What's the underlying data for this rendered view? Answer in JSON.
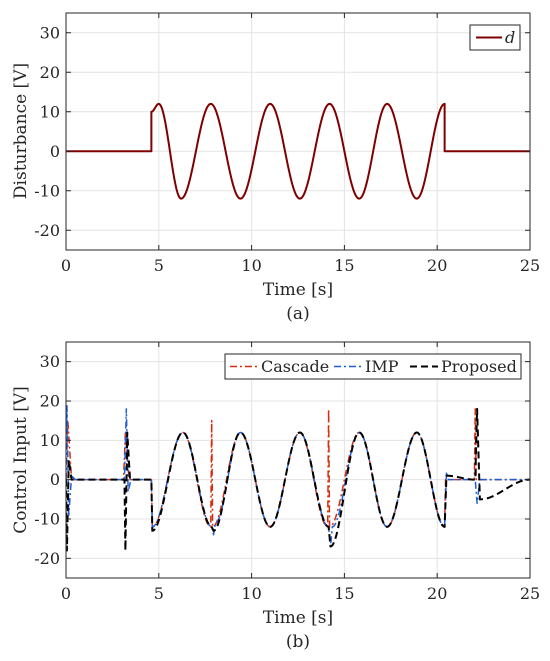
{
  "chart_data": [
    {
      "type": "line",
      "caption": "(a)",
      "xlabel": "Time [s]",
      "ylabel": "Disturbance [V]",
      "xlim": [
        0,
        25
      ],
      "ylim": [
        -25,
        35
      ],
      "xticks": [
        0,
        5,
        10,
        15,
        20,
        25
      ],
      "yticks": [
        -20,
        -10,
        0,
        10,
        20,
        30
      ],
      "grid": true,
      "legend_position": "top-right",
      "series": [
        {
          "name": "d",
          "color": "#7f0000",
          "style": "solid",
          "x": [
            0,
            4.6,
            4.6,
            5.0,
            6.2,
            7.8,
            9.4,
            11.0,
            12.6,
            14.2,
            15.8,
            17.3,
            18.9,
            20.4,
            20.4,
            25
          ],
          "y": [
            0,
            0,
            10,
            12,
            -12,
            12,
            -12,
            12,
            -12,
            12,
            -12,
            12,
            -12,
            12,
            0,
            0
          ]
        }
      ]
    },
    {
      "type": "line",
      "caption": "(b)",
      "xlabel": "Time [s]",
      "ylabel": "Control Input [V]",
      "xlim": [
        0,
        25
      ],
      "ylim": [
        -25,
        35
      ],
      "xticks": [
        0,
        5,
        10,
        15,
        20,
        25
      ],
      "yticks": [
        -20,
        -10,
        0,
        10,
        20,
        30
      ],
      "grid": true,
      "legend_position": "top-right",
      "series": [
        {
          "name": "Cascade",
          "color": "#d62d0f",
          "style": "dashdot",
          "x": [
            0,
            0.1,
            0.3,
            3.1,
            3.2,
            3.4,
            4.6,
            4.65,
            6.3,
            7.8,
            7.85,
            7.9,
            9.4,
            11.0,
            12.6,
            14.1,
            14.15,
            14.2,
            15.8,
            17.3,
            18.9,
            20.4,
            20.45,
            22.0,
            22.05,
            22.1,
            25
          ],
          "y": [
            0,
            15,
            0,
            0,
            12,
            0,
            0,
            -12,
            12,
            -12,
            15,
            -12,
            12,
            -12,
            12,
            -12,
            18,
            -12,
            12,
            -12,
            12,
            -12,
            0,
            0,
            18,
            0,
            0
          ]
        },
        {
          "name": "IMP",
          "color": "#1f5fd6",
          "style": "dashdot",
          "x": [
            0,
            0.05,
            0.15,
            0.3,
            0.5,
            3.15,
            3.25,
            3.35,
            3.5,
            4.6,
            4.65,
            6.3,
            7.85,
            7.95,
            8.05,
            9.4,
            11.0,
            12.6,
            14.15,
            14.25,
            14.35,
            15.8,
            17.3,
            18.9,
            20.4,
            20.5,
            20.6,
            22.05,
            22.15,
            22.3,
            25
          ],
          "y": [
            0,
            19,
            -9,
            1,
            0,
            0,
            18,
            -3,
            0,
            0,
            -12,
            12,
            -12,
            -14,
            -11,
            12,
            -12,
            12,
            -12,
            -17,
            -12,
            12,
            -12,
            12,
            -12,
            2,
            0,
            0,
            -6,
            0,
            0
          ]
        },
        {
          "name": "Proposed",
          "color": "#000000",
          "style": "dashed",
          "x": [
            0,
            0.05,
            0.15,
            0.3,
            3.15,
            3.2,
            3.3,
            3.45,
            4.6,
            4.65,
            6.3,
            7.85,
            7.95,
            9.4,
            11.0,
            12.6,
            14.15,
            14.25,
            15.8,
            17.3,
            18.9,
            20.4,
            20.5,
            22.05,
            22.15,
            22.3,
            25
          ],
          "y": [
            0,
            -18,
            5,
            0,
            0,
            -18,
            12,
            0,
            0,
            -13,
            12,
            -12,
            -13,
            12,
            -12,
            12,
            -12,
            -17,
            12,
            -12,
            12,
            -12,
            1,
            0,
            18,
            -5,
            0
          ]
        }
      ]
    }
  ]
}
